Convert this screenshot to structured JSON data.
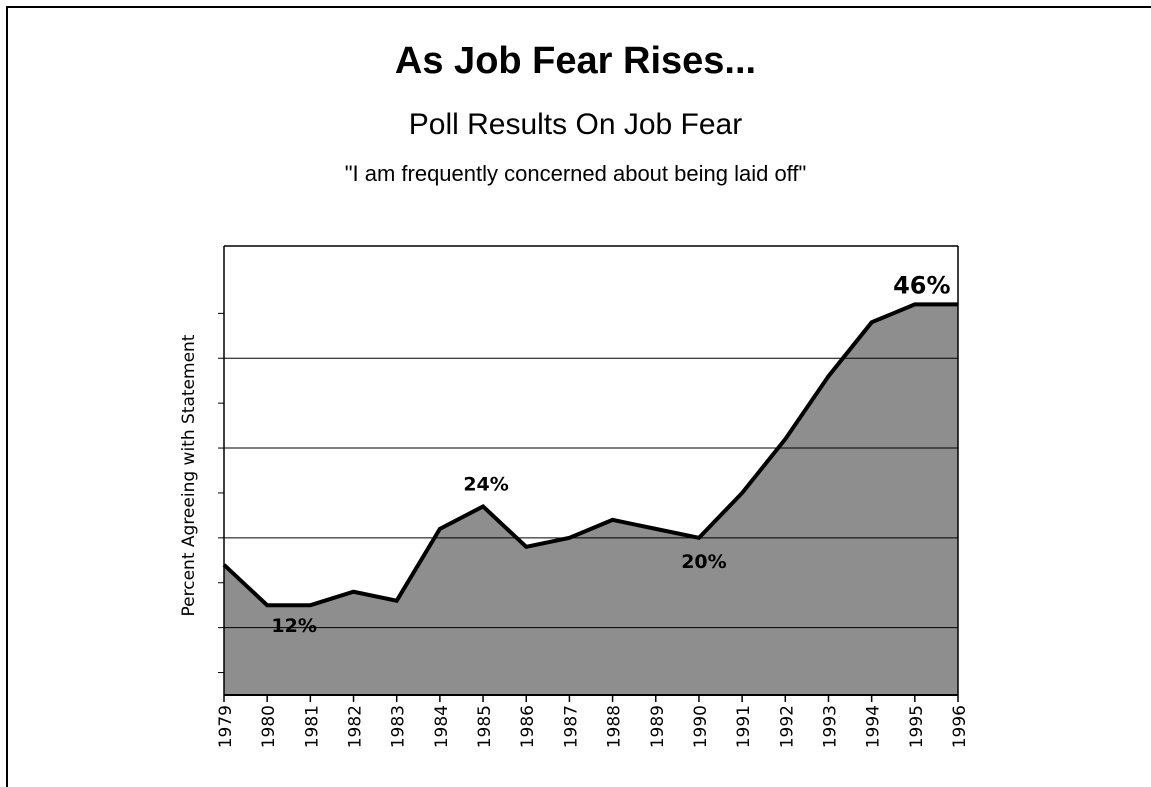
{
  "title": "As Job Fear Rises...",
  "subtitle": "Poll Results On Job Fear",
  "quote": "\"I am frequently concerned about being laid off\"",
  "chart_data": {
    "type": "area",
    "x": [
      "1979",
      "1980",
      "1981",
      "1982",
      "1983",
      "1984",
      "1985",
      "1986",
      "1987",
      "1988",
      "1989",
      "1990",
      "1991",
      "1992",
      "1993",
      "1994",
      "1995",
      "1996"
    ],
    "series": [
      {
        "values": [
          17,
          12.5,
          12.5,
          14,
          13,
          21,
          23.5,
          19,
          20,
          22,
          21,
          20,
          25,
          31,
          38,
          44,
          46,
          46
        ]
      }
    ],
    "ylabel": "Percent Agreeing with Statement",
    "xlabel": "",
    "ylim": [
      2.5,
      52.5
    ],
    "gridlines": [
      10,
      20,
      30,
      40
    ],
    "minor_ticks": [
      5,
      15,
      25,
      35,
      45
    ],
    "annotations": [
      {
        "x": "1980",
        "y": 12.5,
        "text": "12%"
      },
      {
        "x": "1985",
        "y": 23.5,
        "text": "24%"
      },
      {
        "x": "1990",
        "y": 20,
        "text": "20%"
      },
      {
        "x": "1995",
        "y": 46,
        "text": "46%"
      }
    ],
    "grid": true,
    "legend": "none",
    "colors": {
      "fill": "#8e8e8e",
      "line": "#000000",
      "grid": "#000000"
    }
  }
}
